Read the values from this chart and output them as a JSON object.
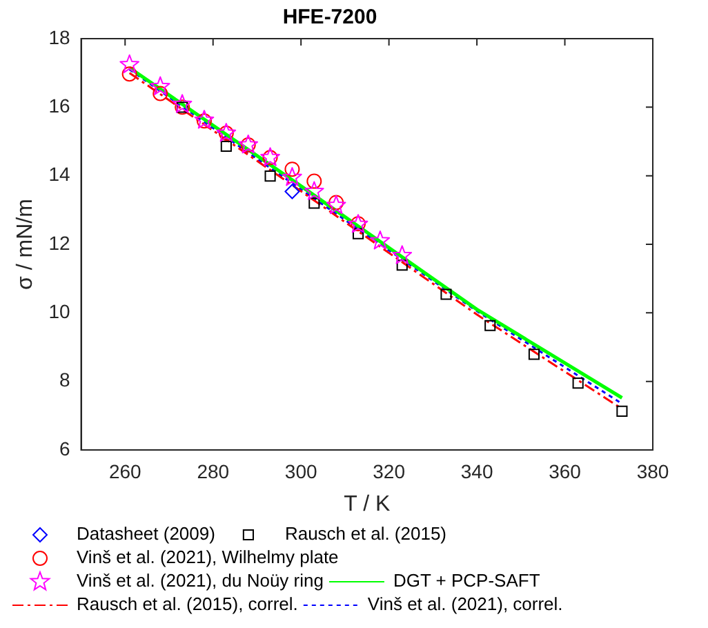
{
  "chart_data": {
    "type": "scatter",
    "title": "HFE-7200",
    "xlabel": "T / K",
    "ylabel": "σ / mN/m",
    "xlim": [
      250,
      380
    ],
    "xticks": [
      260,
      280,
      300,
      320,
      340,
      360,
      380
    ],
    "ylim": [
      6,
      18
    ],
    "yticks": [
      6,
      8,
      10,
      12,
      14,
      16,
      18
    ],
    "grid": false,
    "legend": "bottom",
    "series": [
      {
        "name": "DGT + PCP-SAFT",
        "type": "line",
        "color": "#00ff00",
        "marker": "none",
        "line_style": "solid",
        "x": [
          261,
          300,
          340,
          373
        ],
        "values": [
          17.15,
          13.7,
          10.1,
          7.52
        ]
      },
      {
        "name": "Datasheet (2009)",
        "color": "#0000ff",
        "marker": "diamond",
        "x": [
          298
        ],
        "values": [
          13.54
        ]
      },
      {
        "name": "Rausch et al. (2015)",
        "color": "#000000",
        "marker": "square",
        "x": [
          273,
          283,
          293,
          303,
          313,
          323,
          333,
          343,
          353,
          363,
          373
        ],
        "values": [
          16.0,
          14.86,
          13.99,
          13.2,
          12.31,
          11.39,
          10.54,
          9.63,
          8.79,
          7.95,
          7.13
        ]
      },
      {
        "name": "Vinš et al. (2021), Wilhelmy plate",
        "color": "#ff0000",
        "marker": "circle",
        "x": [
          261,
          268,
          273,
          278,
          283,
          288,
          293,
          298,
          303,
          308,
          313
        ],
        "values": [
          16.97,
          16.4,
          16.0,
          15.6,
          15.24,
          14.9,
          14.53,
          14.19,
          13.84,
          13.22,
          12.6
        ]
      },
      {
        "name": "Vinš et al. (2021), du Noüy ring",
        "color": "#ff00ff",
        "marker": "star",
        "x": [
          261,
          268,
          273,
          278,
          283,
          288,
          293,
          298,
          303,
          308,
          313,
          318,
          323
        ],
        "values": [
          17.24,
          16.6,
          16.08,
          15.62,
          15.24,
          14.9,
          14.53,
          13.95,
          13.54,
          13.13,
          12.58,
          12.1,
          11.67
        ]
      },
      {
        "name": "Rausch et al. (2015), correl.",
        "type": "line",
        "color": "#ff0000",
        "marker": "none",
        "line_style": "dashed",
        "x": [
          261,
          300,
          340,
          373
        ],
        "values": [
          17.0,
          13.55,
          9.95,
          7.2
        ]
      },
      {
        "name": "Vinš et al. (2021), correl.",
        "type": "line",
        "color": "#0000ff",
        "marker": "none",
        "line_style": "dotted",
        "x": [
          261,
          300,
          340,
          373
        ],
        "values": [
          17.1,
          13.6,
          10.05,
          7.35
        ]
      }
    ]
  }
}
